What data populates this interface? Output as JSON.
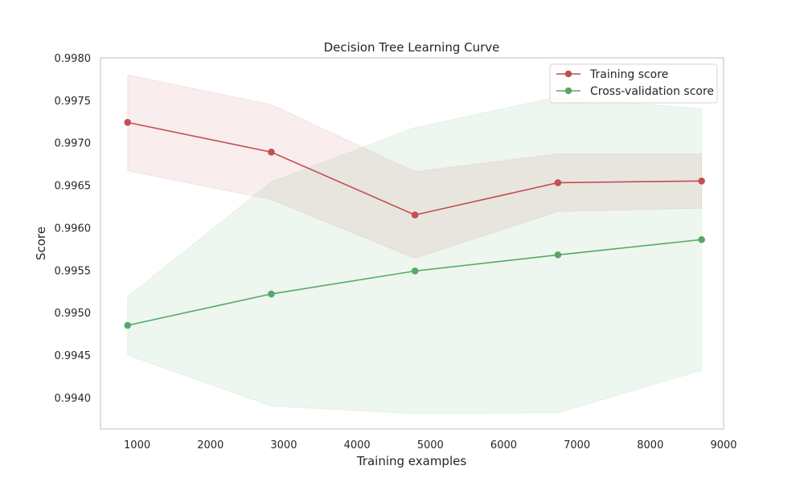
{
  "chart_data": {
    "type": "line",
    "title": "Decision Tree Learning Curve",
    "xlabel": "Training examples",
    "ylabel": "Score",
    "xlim": [
      500,
      9000
    ],
    "ylim": [
      0.99363,
      0.998
    ],
    "xticks": [
      1000,
      2000,
      3000,
      4000,
      5000,
      6000,
      7000,
      8000,
      9000
    ],
    "xtick_labels": [
      "1000",
      "2000",
      "3000",
      "4000",
      "5000",
      "6000",
      "7000",
      "8000",
      "9000"
    ],
    "yticks": [
      0.994,
      0.9945,
      0.995,
      0.9955,
      0.996,
      0.9965,
      0.997,
      0.9975,
      0.998
    ],
    "ytick_labels": [
      "0.9940",
      "0.9945",
      "0.9950",
      "0.9955",
      "0.9960",
      "0.9965",
      "0.9970",
      "0.9975",
      "0.9980"
    ],
    "grid": false,
    "legend_position": "top-right",
    "x": [
      870,
      2830,
      4790,
      6740,
      8700
    ],
    "series": [
      {
        "name": "Training score",
        "color": "#c44e52",
        "values": [
          0.99724,
          0.99689,
          0.99615,
          0.99653,
          0.99655
        ],
        "band_upper": [
          0.9978,
          0.99745,
          0.99666,
          0.99687,
          0.99687
        ],
        "band_lower": [
          0.99667,
          0.99633,
          0.99564,
          0.99619,
          0.99623
        ]
      },
      {
        "name": "Cross-validation score",
        "color": "#55a868",
        "values": [
          0.99485,
          0.99522,
          0.99549,
          0.99568,
          0.99586
        ],
        "band_upper": [
          0.99519,
          0.99654,
          0.99718,
          0.99754,
          0.9974
        ],
        "band_lower": [
          0.9945,
          0.9939,
          0.99381,
          0.99382,
          0.99432
        ]
      }
    ]
  }
}
